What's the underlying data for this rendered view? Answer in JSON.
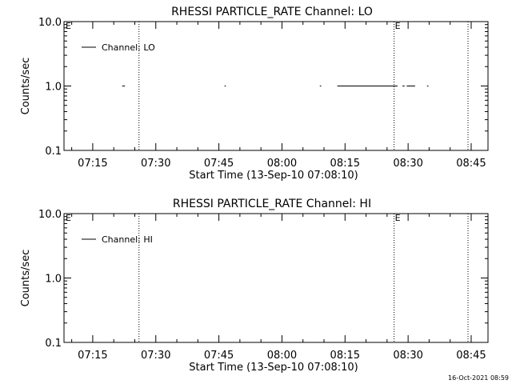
{
  "footer_timestamp": "16-Oct-2021 08:59",
  "chart_data": [
    {
      "type": "line",
      "title": "RHESSI PARTICLE_RATE Channel: LO",
      "xlabel": "Start Time (13-Sep-10 07:08:10)",
      "ylabel": "Counts/sec",
      "y_scale": "log",
      "ylim": [
        0.1,
        10.0
      ],
      "y_ticks": [
        "0.1",
        "1.0",
        "10.0"
      ],
      "xlim": [
        "07:08:10",
        "08:49:00"
      ],
      "x_ticks": [
        "07:15",
        "07:30",
        "07:45",
        "08:00",
        "08:15",
        "08:30",
        "08:45"
      ],
      "legend": {
        "label": "Channel: LO",
        "placement": "top-left"
      },
      "markers": [
        {
          "time": "07:26:00",
          "label": ""
        },
        {
          "time": "08:26:40",
          "label": "E"
        },
        {
          "time": "08:44:15",
          "label": ""
        }
      ],
      "corner_label": "E",
      "series": [
        {
          "name": "Channel: LO",
          "segments": [
            {
              "start": "07:22:00",
              "end": "07:22:40",
              "value": 1.0
            },
            {
              "start": "07:46:20",
              "end": "07:46:40",
              "value": 1.0
            },
            {
              "start": "08:09:00",
              "end": "08:09:20",
              "value": 1.0
            },
            {
              "start": "08:13:10",
              "end": "08:27:30",
              "value": 1.0
            },
            {
              "start": "08:28:40",
              "end": "08:29:10",
              "value": 1.0
            },
            {
              "start": "08:29:40",
              "end": "08:31:40",
              "value": 1.0
            },
            {
              "start": "08:34:30",
              "end": "08:34:50",
              "value": 1.0
            }
          ]
        }
      ]
    },
    {
      "type": "line",
      "title": "RHESSI PARTICLE_RATE Channel: HI",
      "xlabel": "Start Time (13-Sep-10 07:08:10)",
      "ylabel": "Counts/sec",
      "y_scale": "log",
      "ylim": [
        0.1,
        10.0
      ],
      "y_ticks": [
        "0.1",
        "1.0",
        "10.0"
      ],
      "xlim": [
        "07:08:10",
        "08:49:00"
      ],
      "x_ticks": [
        "07:15",
        "07:30",
        "07:45",
        "08:00",
        "08:15",
        "08:30",
        "08:45"
      ],
      "legend": {
        "label": "Channel: HI",
        "placement": "top-left"
      },
      "markers": [
        {
          "time": "07:26:00",
          "label": ""
        },
        {
          "time": "08:26:40",
          "label": "E"
        },
        {
          "time": "08:44:15",
          "label": ""
        }
      ],
      "corner_label": "E",
      "series": [
        {
          "name": "Channel: HI",
          "segments": []
        }
      ]
    }
  ]
}
